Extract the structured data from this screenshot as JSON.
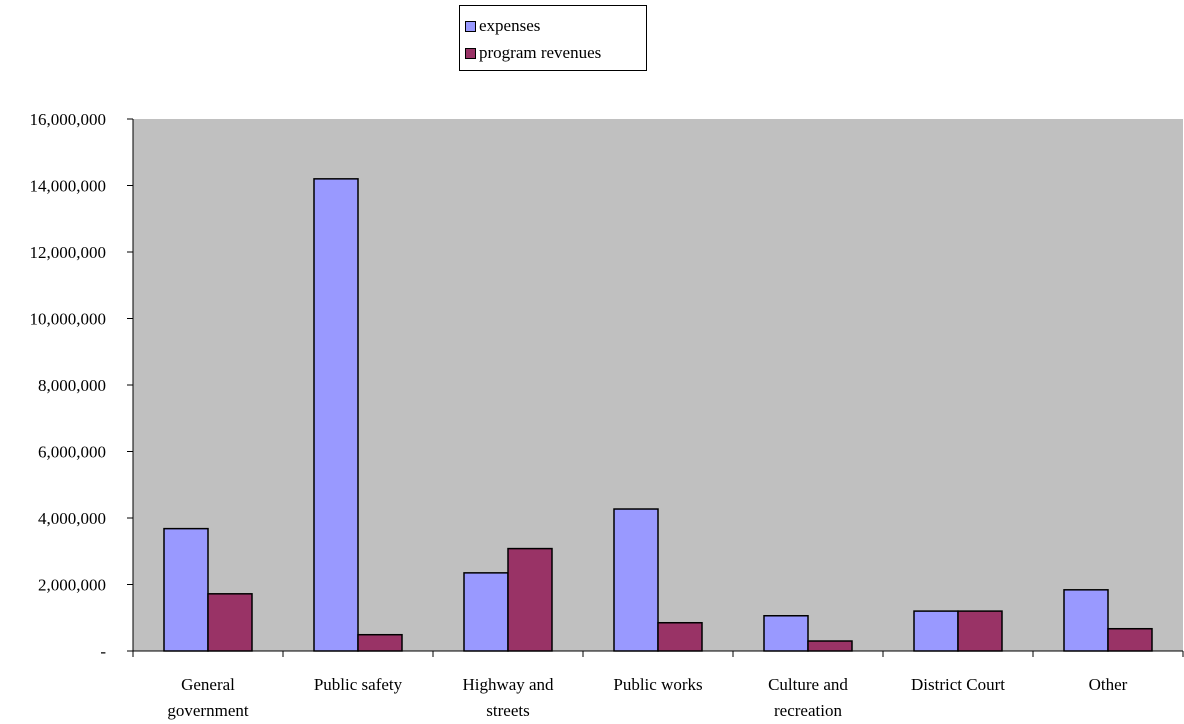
{
  "chart_data": {
    "type": "bar",
    "categories": [
      [
        "General",
        "government"
      ],
      [
        "Public safety"
      ],
      [
        "Highway and",
        "streets"
      ],
      [
        "Public works"
      ],
      [
        "Culture and",
        "recreation"
      ],
      [
        "District Court"
      ],
      [
        "Other"
      ]
    ],
    "series": [
      {
        "name": "expenses",
        "color": "#9999ff",
        "values": [
          3680000,
          14200000,
          2350000,
          4270000,
          1060000,
          1200000,
          1840000
        ]
      },
      {
        "name": "program revenues",
        "color": "#993366",
        "values": [
          1720000,
          490000,
          3080000,
          850000,
          300000,
          1200000,
          670000
        ]
      }
    ],
    "ylim": [
      0,
      16000000
    ],
    "yticks": [
      0,
      2000000,
      4000000,
      6000000,
      8000000,
      10000000,
      12000000,
      14000000,
      16000000
    ],
    "ytick_labels": [
      "-",
      "2,000,000",
      "4,000,000",
      "6,000,000",
      "8,000,000",
      "10,000,000",
      "12,000,000",
      "14,000,000",
      "16,000,000"
    ],
    "plot_background": "#c0c0c0",
    "grid": false,
    "legend_position": "top-center"
  }
}
